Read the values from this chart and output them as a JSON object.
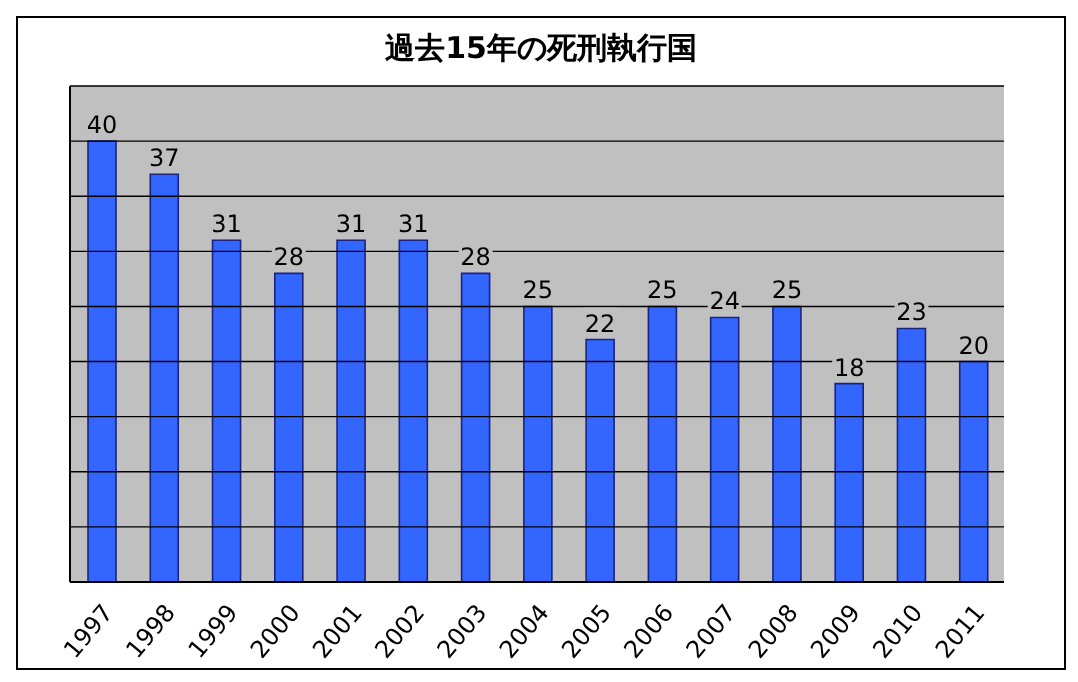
{
  "chart_data": {
    "type": "bar",
    "title": "過去15年の死刑執行国",
    "categories": [
      "1997",
      "1998",
      "1999",
      "2000",
      "2001",
      "2002",
      "2003",
      "2004",
      "2005",
      "2006",
      "2007",
      "2008",
      "2009",
      "2010",
      "2011"
    ],
    "values": [
      40,
      37,
      31,
      28,
      31,
      31,
      28,
      25,
      22,
      25,
      24,
      25,
      18,
      23,
      20
    ],
    "color": "#3366ff",
    "data_labels": true,
    "ylim": [
      0,
      45
    ],
    "yticks": [
      {
        "value": 0,
        "label": null
      },
      {
        "value": 5,
        "label": null
      },
      {
        "value": 10,
        "label": null
      },
      {
        "value": 15,
        "label": null
      },
      {
        "value": 20,
        "label": null
      },
      {
        "value": 25,
        "label": null
      },
      {
        "value": 30,
        "label": null
      },
      {
        "value": 35,
        "label": null
      },
      {
        "value": 40,
        "label": null
      },
      {
        "value": 45,
        "label": null
      }
    ],
    "grid": "y",
    "tick_labels": "x"
  }
}
